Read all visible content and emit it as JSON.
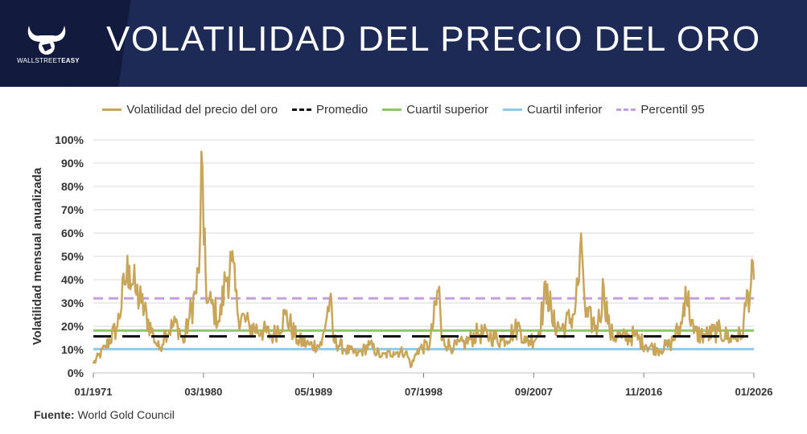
{
  "header": {
    "title": "VOLATILIDAD DEL PRECIO DEL ORO",
    "brand_light": "WALLSTREET",
    "brand_bold": "EASY"
  },
  "colors": {
    "header_bg": "#1e2a56",
    "volatility": "#c9a55a",
    "average": "#111111",
    "upper_quartile": "#8cc665",
    "lower_quartile": "#8ccbea",
    "p95": "#c59ee0",
    "grid": "#d9d9d9"
  },
  "source": {
    "label": "Fuente:",
    "value": "World Gold Council"
  },
  "chart_data": {
    "type": "line",
    "title": "Volatilidad del precio del oro",
    "xlabel": "",
    "ylabel": "Volatilidad mensual anualizada",
    "ylim": [
      0,
      100
    ],
    "xlim": [
      1971.0,
      2026.0
    ],
    "y_ticks": [
      "0%",
      "10%",
      "20%",
      "30%",
      "40%",
      "50%",
      "60%",
      "70%",
      "80%",
      "90%",
      "100%"
    ],
    "x_ticks": [
      {
        "label": "01/1971",
        "value": 1971.0
      },
      {
        "label": "03/1980",
        "value": 1980.17
      },
      {
        "label": "05/1989",
        "value": 1989.33
      },
      {
        "label": "07/1998",
        "value": 1998.5
      },
      {
        "label": "09/2007",
        "value": 2007.67
      },
      {
        "label": "11/2016",
        "value": 2016.83
      },
      {
        "label": "01/2026",
        "value": 2026.0
      }
    ],
    "series": [
      {
        "name": "Volatilidad del precio del oro",
        "style": "solid",
        "x": [
          1971.0,
          1972.0,
          1973.0,
          1973.6,
          1974.0,
          1974.5,
          1975.0,
          1976.0,
          1976.5,
          1977.0,
          1978.0,
          1978.5,
          1979.0,
          1979.5,
          1979.8,
          1980.0,
          1980.2,
          1980.5,
          1981.0,
          1981.5,
          1982.0,
          1982.5,
          1983.0,
          1984.0,
          1985.0,
          1986.0,
          1987.0,
          1988.0,
          1989.0,
          1990.0,
          1990.7,
          1991.0,
          1992.0,
          1993.0,
          1994.0,
          1995.0,
          1996.0,
          1997.0,
          1997.5,
          1998.0,
          1999.0,
          1999.8,
          2000.0,
          2001.0,
          2002.0,
          2003.0,
          2004.0,
          2005.0,
          2006.0,
          2006.5,
          2007.0,
          2008.0,
          2008.8,
          2009.2,
          2010.0,
          2011.0,
          2011.7,
          2012.0,
          2013.0,
          2013.5,
          2014.0,
          2015.0,
          2016.0,
          2017.0,
          2018.0,
          2019.0,
          2020.0,
          2020.3,
          2021.0,
          2022.0,
          2023.0,
          2024.0,
          2025.0,
          2025.5,
          2026.0
        ],
        "values": [
          4,
          11,
          20,
          38,
          46,
          35,
          30,
          16,
          10,
          18,
          21,
          13,
          24,
          34,
          43,
          95,
          55,
          30,
          28,
          22,
          40,
          48,
          26,
          20,
          18,
          16,
          25,
          14,
          12,
          12,
          32,
          14,
          10,
          8,
          12,
          7,
          9,
          9,
          3,
          10,
          12,
          37,
          14,
          11,
          13,
          17,
          16,
          14,
          18,
          20,
          13,
          16,
          38,
          22,
          19,
          25,
          51,
          24,
          20,
          37,
          17,
          15,
          16,
          12,
          10,
          12,
          21,
          37,
          17,
          16,
          18,
          15,
          16,
          35,
          40
        ]
      },
      {
        "name": "Promedio",
        "style": "dashed",
        "constant": 15.7
      },
      {
        "name": "Cuartil superior",
        "style": "solid",
        "constant": 18.2
      },
      {
        "name": "Cuartil inferior",
        "style": "solid",
        "constant": 10.2
      },
      {
        "name": "Percentil 95",
        "style": "dashed",
        "constant": 32.0
      }
    ]
  }
}
